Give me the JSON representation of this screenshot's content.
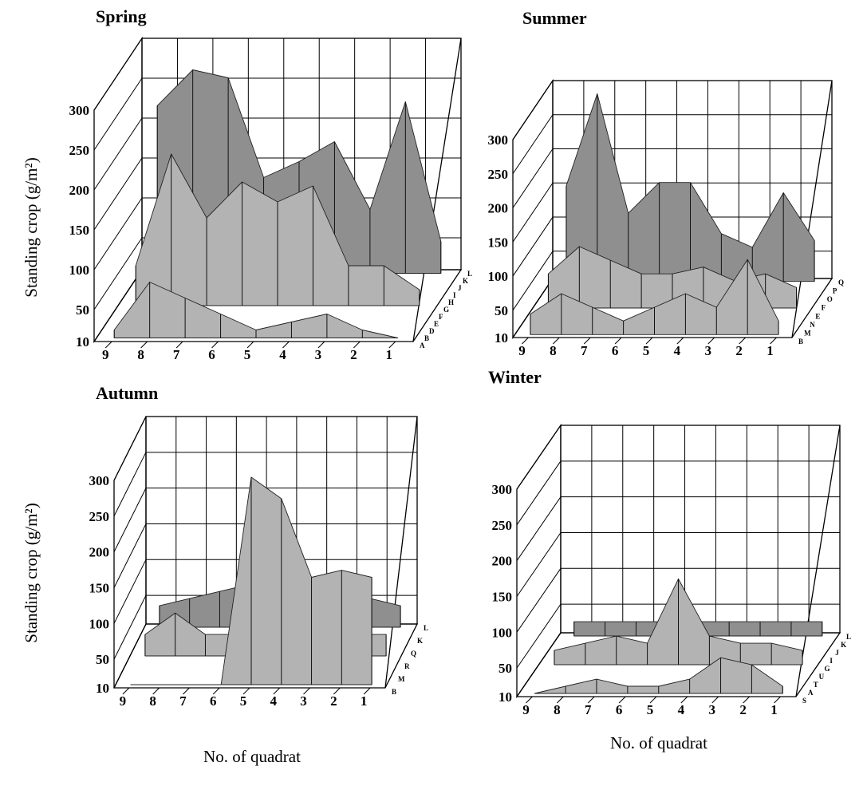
{
  "figure": {
    "xlabel": "No. of quadrat",
    "ylabel": "Standing crop (g/m²)"
  },
  "chart_data": [
    {
      "type": "surface",
      "title": "Spring",
      "x_ticks": [
        "9",
        "8",
        "7",
        "6",
        "5",
        "4",
        "3",
        "2",
        "1"
      ],
      "y_ticks": [
        "10",
        "50",
        "100",
        "150",
        "200",
        "250",
        "300"
      ],
      "ylim": [
        10,
        300
      ],
      "depth_labels": [
        "A",
        "B",
        "D",
        "E",
        "F",
        "G",
        "H",
        "I",
        "J",
        "K",
        "L"
      ],
      "xlabel": "No. of quadrat",
      "ylabel": "Standing crop (g/m²)",
      "series": [
        {
          "name": "L",
          "values": [
            220,
            265,
            255,
            130,
            150,
            175,
            90,
            225,
            50
          ]
        },
        {
          "name": "G",
          "values": [
            60,
            200,
            120,
            165,
            140,
            160,
            60,
            60,
            30
          ]
        },
        {
          "name": "B",
          "values": [
            20,
            80,
            60,
            40,
            20,
            30,
            40,
            20,
            10
          ]
        }
      ]
    },
    {
      "type": "surface",
      "title": "Summer",
      "x_ticks": [
        "9",
        "8",
        "7",
        "6",
        "5",
        "4",
        "3",
        "2",
        "1"
      ],
      "y_ticks": [
        "10",
        "50",
        "100",
        "150",
        "200",
        "250",
        "300"
      ],
      "ylim": [
        10,
        300
      ],
      "depth_labels": [
        "B",
        "M",
        "N",
        "E",
        "F",
        "O",
        "P",
        "Q"
      ],
      "xlabel": "No. of quadrat",
      "ylabel": "Standing crop (g/m²)",
      "series": [
        {
          "name": "Q",
          "values": [
            150,
            285,
            110,
            155,
            155,
            80,
            60,
            140,
            70
          ]
        },
        {
          "name": "F",
          "values": [
            60,
            100,
            80,
            60,
            60,
            70,
            50,
            60,
            40
          ]
        },
        {
          "name": "B",
          "values": [
            40,
            70,
            50,
            30,
            50,
            70,
            50,
            120,
            30
          ]
        }
      ]
    },
    {
      "type": "surface",
      "title": "Autumn",
      "x_ticks": [
        "9",
        "8",
        "7",
        "6",
        "5",
        "4",
        "3",
        "2",
        "1"
      ],
      "y_ticks": [
        "10",
        "50",
        "100",
        "150",
        "200",
        "250",
        "300"
      ],
      "ylim": [
        10,
        300
      ],
      "depth_labels": [
        "B",
        "M",
        "R",
        "Q",
        "K",
        "L"
      ],
      "xlabel": "No. of quadrat",
      "ylabel": "Standing crop (g/m²)",
      "series": [
        {
          "name": "L",
          "values": [
            40,
            50,
            60,
            70,
            80,
            60,
            60,
            50,
            40
          ]
        },
        {
          "name": "Q",
          "values": [
            40,
            70,
            40,
            40,
            40,
            40,
            40,
            40,
            40
          ]
        },
        {
          "name": "B",
          "values": [
            10,
            10,
            10,
            10,
            300,
            270,
            160,
            170,
            160
          ]
        }
      ]
    },
    {
      "type": "surface",
      "title": "Winter",
      "x_ticks": [
        "9",
        "8",
        "7",
        "6",
        "5",
        "4",
        "3",
        "2",
        "1"
      ],
      "y_ticks": [
        "10",
        "50",
        "100",
        "150",
        "200",
        "250",
        "300"
      ],
      "ylim": [
        10,
        300
      ],
      "depth_labels": [
        "S",
        "A",
        "T",
        "U",
        "G",
        "I",
        "J",
        "K",
        "L"
      ],
      "xlabel": "No. of quadrat",
      "ylabel": "Standing crop (g/m²)",
      "series": [
        {
          "name": "L",
          "values": [
            30,
            30,
            30,
            30,
            30,
            30,
            30,
            30,
            30
          ]
        },
        {
          "name": "J",
          "values": [
            30,
            40,
            50,
            40,
            130,
            50,
            40,
            40,
            30
          ]
        },
        {
          "name": "S",
          "values": [
            10,
            20,
            30,
            20,
            20,
            30,
            60,
            50,
            20
          ]
        }
      ]
    }
  ]
}
